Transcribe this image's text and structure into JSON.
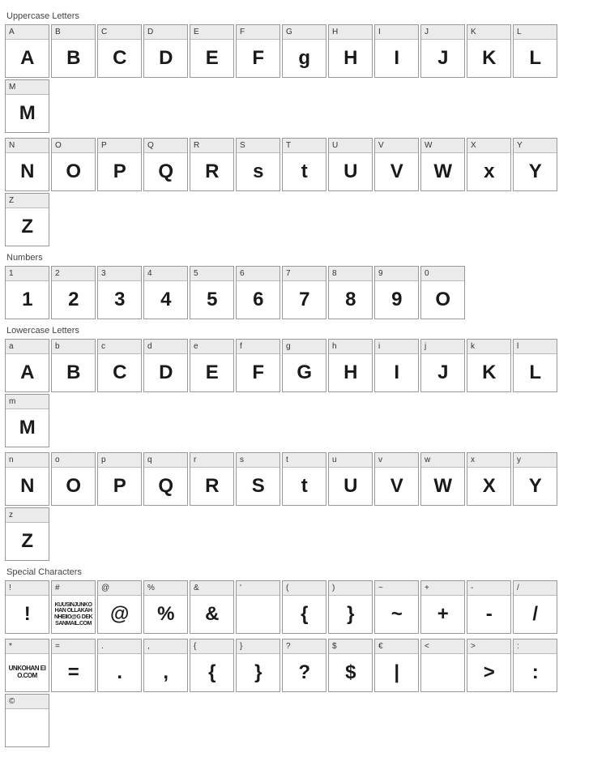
{
  "sections": [
    {
      "title": "Uppercase Letters",
      "rows": [
        [
          {
            "label": "A",
            "glyph": "A"
          },
          {
            "label": "B",
            "glyph": "B"
          },
          {
            "label": "C",
            "glyph": "C"
          },
          {
            "label": "D",
            "glyph": "D"
          },
          {
            "label": "E",
            "glyph": "E"
          },
          {
            "label": "F",
            "glyph": "F"
          },
          {
            "label": "G",
            "glyph": "g"
          },
          {
            "label": "H",
            "glyph": "H"
          },
          {
            "label": "I",
            "glyph": "I"
          },
          {
            "label": "J",
            "glyph": "J"
          },
          {
            "label": "K",
            "glyph": "K"
          },
          {
            "label": "L",
            "glyph": "L"
          },
          {
            "label": "M",
            "glyph": "M"
          }
        ],
        [
          {
            "label": "N",
            "glyph": "N"
          },
          {
            "label": "O",
            "glyph": "O"
          },
          {
            "label": "P",
            "glyph": "P"
          },
          {
            "label": "Q",
            "glyph": "Q"
          },
          {
            "label": "R",
            "glyph": "R"
          },
          {
            "label": "S",
            "glyph": "s"
          },
          {
            "label": "T",
            "glyph": "t"
          },
          {
            "label": "U",
            "glyph": "U"
          },
          {
            "label": "V",
            "glyph": "V"
          },
          {
            "label": "W",
            "glyph": "W"
          },
          {
            "label": "X",
            "glyph": "x"
          },
          {
            "label": "Y",
            "glyph": "Y"
          },
          {
            "label": "Z",
            "glyph": "Z"
          }
        ]
      ]
    },
    {
      "title": "Numbers",
      "rows": [
        [
          {
            "label": "1",
            "glyph": "1"
          },
          {
            "label": "2",
            "glyph": "2"
          },
          {
            "label": "3",
            "glyph": "3"
          },
          {
            "label": "4",
            "glyph": "4"
          },
          {
            "label": "5",
            "glyph": "5"
          },
          {
            "label": "6",
            "glyph": "6"
          },
          {
            "label": "7",
            "glyph": "7"
          },
          {
            "label": "8",
            "glyph": "8"
          },
          {
            "label": "9",
            "glyph": "9"
          },
          {
            "label": "0",
            "glyph": "O"
          }
        ]
      ]
    },
    {
      "title": "Lowercase Letters",
      "rows": [
        [
          {
            "label": "a",
            "glyph": "A"
          },
          {
            "label": "b",
            "glyph": "B"
          },
          {
            "label": "c",
            "glyph": "C"
          },
          {
            "label": "d",
            "glyph": "D"
          },
          {
            "label": "e",
            "glyph": "E"
          },
          {
            "label": "f",
            "glyph": "F"
          },
          {
            "label": "g",
            "glyph": "G"
          },
          {
            "label": "h",
            "glyph": "H"
          },
          {
            "label": "i",
            "glyph": "I"
          },
          {
            "label": "j",
            "glyph": "J"
          },
          {
            "label": "k",
            "glyph": "K"
          },
          {
            "label": "l",
            "glyph": "L"
          },
          {
            "label": "m",
            "glyph": "M"
          }
        ],
        [
          {
            "label": "n",
            "glyph": "N"
          },
          {
            "label": "o",
            "glyph": "O"
          },
          {
            "label": "p",
            "glyph": "P"
          },
          {
            "label": "q",
            "glyph": "Q"
          },
          {
            "label": "r",
            "glyph": "R"
          },
          {
            "label": "s",
            "glyph": "S"
          },
          {
            "label": "t",
            "glyph": "t"
          },
          {
            "label": "u",
            "glyph": "U"
          },
          {
            "label": "v",
            "glyph": "V"
          },
          {
            "label": "w",
            "glyph": "W"
          },
          {
            "label": "x",
            "glyph": "X"
          },
          {
            "label": "y",
            "glyph": "Y"
          },
          {
            "label": "z",
            "glyph": "Z"
          }
        ]
      ]
    },
    {
      "title": "Special Characters",
      "rows": [
        [
          {
            "label": "!",
            "glyph": "!"
          },
          {
            "label": "#",
            "glyph": "KUUSINJUNKOHAN OLLAKAHNHEIIO@G DEKSANMAIL.COM",
            "cls": "small"
          },
          {
            "label": "@",
            "glyph": "@"
          },
          {
            "label": "%",
            "glyph": "%"
          },
          {
            "label": "&",
            "glyph": "&"
          },
          {
            "label": "'",
            "glyph": ""
          },
          {
            "label": "(",
            "glyph": "{"
          },
          {
            "label": ")",
            "glyph": "}"
          },
          {
            "label": "~",
            "glyph": "~"
          },
          {
            "label": "+",
            "glyph": "+"
          },
          {
            "label": "-",
            "glyph": "-"
          },
          {
            "label": "/",
            "glyph": "/"
          }
        ],
        [
          {
            "label": "*",
            "glyph": "UNKOHAN EIO.COM",
            "cls": "tiny"
          },
          {
            "label": "=",
            "glyph": "="
          },
          {
            "label": ".",
            "glyph": "."
          },
          {
            "label": ",",
            "glyph": ","
          },
          {
            "label": "{",
            "glyph": "{"
          },
          {
            "label": "}",
            "glyph": "}"
          },
          {
            "label": "?",
            "glyph": "?"
          },
          {
            "label": "$",
            "glyph": "$"
          },
          {
            "label": "€",
            "glyph": "|"
          },
          {
            "label": "<",
            "glyph": ""
          },
          {
            "label": ">",
            "glyph": ">"
          },
          {
            "label": ":",
            "glyph": ":"
          },
          {
            "label": "©",
            "glyph": ""
          }
        ]
      ]
    }
  ]
}
